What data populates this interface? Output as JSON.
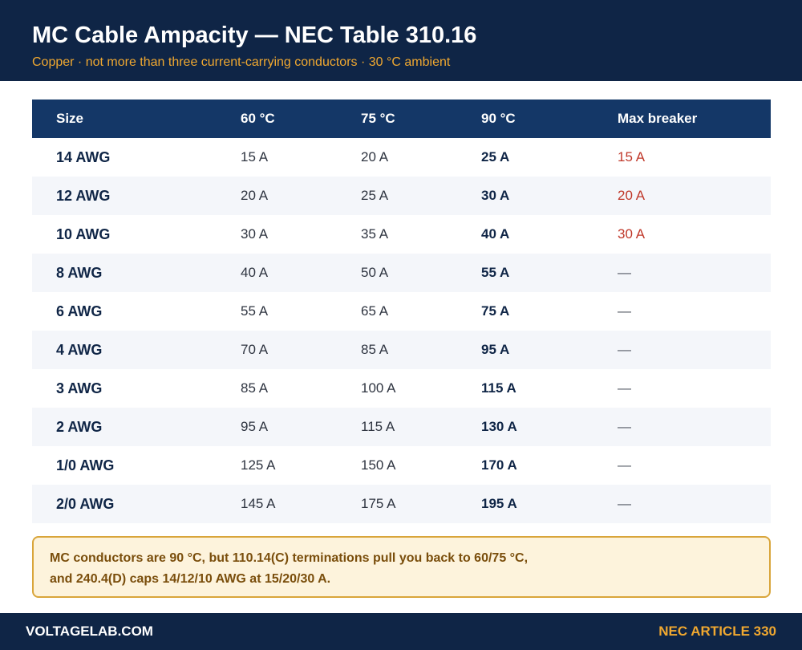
{
  "header": {
    "title": "MC Cable Ampacity — NEC Table 310.16",
    "subtitle": "Copper · not more than three current-carrying conductors · 30 °C ambient"
  },
  "table": {
    "columns": [
      "Size",
      "60 °C",
      "75 °C",
      "90 °C",
      "Max breaker"
    ],
    "rows": [
      {
        "size": "14 AWG",
        "c60": "15 A",
        "c75": "20 A",
        "c90": "25 A",
        "breaker": "15 A"
      },
      {
        "size": "12 AWG",
        "c60": "20 A",
        "c75": "25 A",
        "c90": "30 A",
        "breaker": "20 A"
      },
      {
        "size": "10 AWG",
        "c60": "30 A",
        "c75": "35 A",
        "c90": "40 A",
        "breaker": "30 A"
      },
      {
        "size": "8 AWG",
        "c60": "40 A",
        "c75": "50 A",
        "c90": "55 A",
        "breaker": "—"
      },
      {
        "size": "6 AWG",
        "c60": "55 A",
        "c75": "65 A",
        "c90": "75 A",
        "breaker": "—"
      },
      {
        "size": "4 AWG",
        "c60": "70 A",
        "c75": "85 A",
        "c90": "95 A",
        "breaker": "—"
      },
      {
        "size": "3 AWG",
        "c60": "85 A",
        "c75": "100 A",
        "c90": "115 A",
        "breaker": "—"
      },
      {
        "size": "2 AWG",
        "c60": "95 A",
        "c75": "115 A",
        "c90": "130 A",
        "breaker": "—"
      },
      {
        "size": "1/0 AWG",
        "c60": "125 A",
        "c75": "150 A",
        "c90": "170 A",
        "breaker": "—"
      },
      {
        "size": "2/0 AWG",
        "c60": "145 A",
        "c75": "175 A",
        "c90": "195 A",
        "breaker": "—"
      }
    ]
  },
  "note": {
    "text": "MC conductors are 90 °C, but 110.14(C) terminations pull you back to 60/75 °C, and 240.4(D) caps 14/12/10 AWG at 15/20/30 A."
  },
  "footer": {
    "site": "VOLTAGELAB.COM",
    "reference": "NEC ARTICLE 330"
  },
  "colors": {
    "navy": "#0f2546",
    "header_row": "#143767",
    "accent": "#f0a830",
    "breaker_red": "#c0392b",
    "note_bg": "#fdf3dc",
    "note_border": "#d9a53a"
  }
}
